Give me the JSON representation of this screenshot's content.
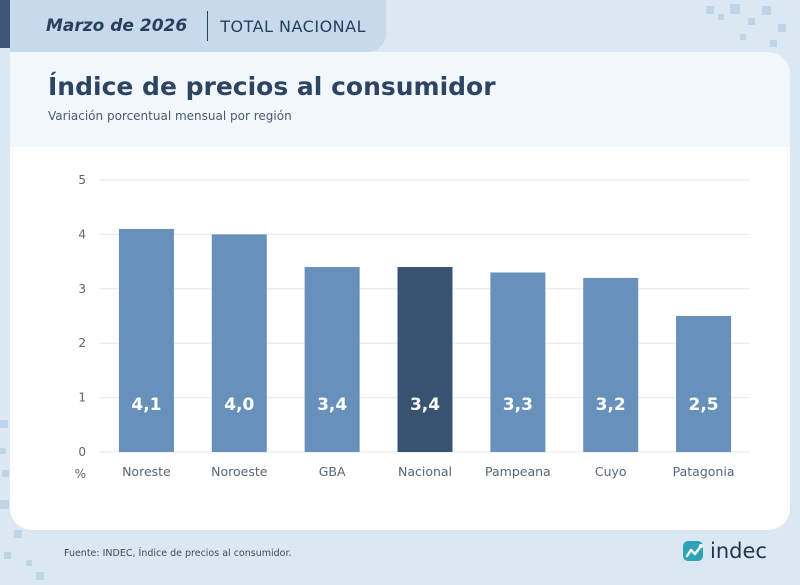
{
  "header": {
    "date": "Marzo de 2026",
    "scope": "TOTAL NACIONAL"
  },
  "footer": {
    "source": "Fuente: INDEC, Índice de precios al consumidor.",
    "logo_text": "indec"
  },
  "colors": {
    "bar": "#6790bb",
    "bar_highlight": "#375371",
    "label": "#ffffff",
    "grid": "#e3e8ee",
    "tick": "#5a6573"
  },
  "chart_data": {
    "type": "bar",
    "title": "Índice de precios al consumidor",
    "subtitle": "Variación porcentual mensual por región",
    "xlabel": "",
    "ylabel": "%",
    "ylim": [
      0,
      5
    ],
    "yticks": [
      "0",
      "1",
      "2",
      "3",
      "4",
      "5"
    ],
    "grid": true,
    "categories": [
      "Noreste",
      "Noroeste",
      "GBA",
      "Nacional",
      "Pampeana",
      "Cuyo",
      "Patagonia"
    ],
    "values": [
      4.1,
      4.0,
      3.4,
      3.4,
      3.3,
      3.2,
      2.5
    ],
    "value_labels": [
      "4,1",
      "4,0",
      "3,4",
      "3,4",
      "3,3",
      "3,2",
      "2,5"
    ],
    "highlight": "Nacional"
  }
}
